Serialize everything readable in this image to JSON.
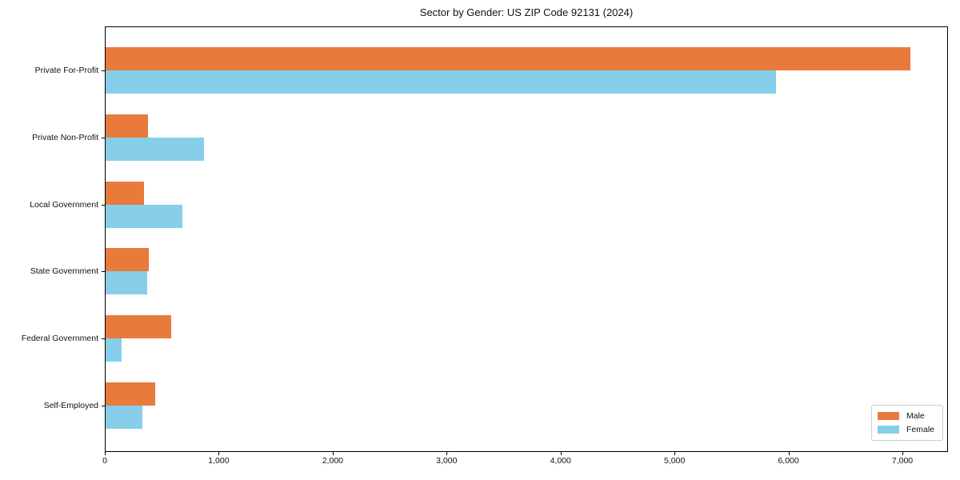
{
  "chart_data": {
    "type": "bar",
    "orientation": "horizontal",
    "title": "Sector by Gender: US ZIP Code 92131 (2024)",
    "categories": [
      "Private For-Profit",
      "Private Non-Profit",
      "Local Government",
      "State Government",
      "Federal Government",
      "Self-Employed"
    ],
    "series": [
      {
        "name": "Male",
        "color": "#e87a3c",
        "values": [
          7060,
          370,
          340,
          380,
          575,
          435
        ]
      },
      {
        "name": "Female",
        "color": "#87ceeb",
        "values": [
          5880,
          865,
          675,
          365,
          140,
          325
        ]
      }
    ],
    "xlabel": "",
    "ylabel": "",
    "xlim": [
      0,
      7400
    ],
    "x_ticks": [
      0,
      1000,
      2000,
      3000,
      4000,
      5000,
      6000,
      7000
    ],
    "x_tick_labels": [
      "0",
      "1,000",
      "2,000",
      "3,000",
      "4,000",
      "5,000",
      "6,000",
      "7,000"
    ],
    "grid": false,
    "legend_position": "lower right",
    "bar_color_accent": "#e87a3c",
    "bar_color_secondary": "#87ceeb",
    "spine_color": "#000000"
  }
}
